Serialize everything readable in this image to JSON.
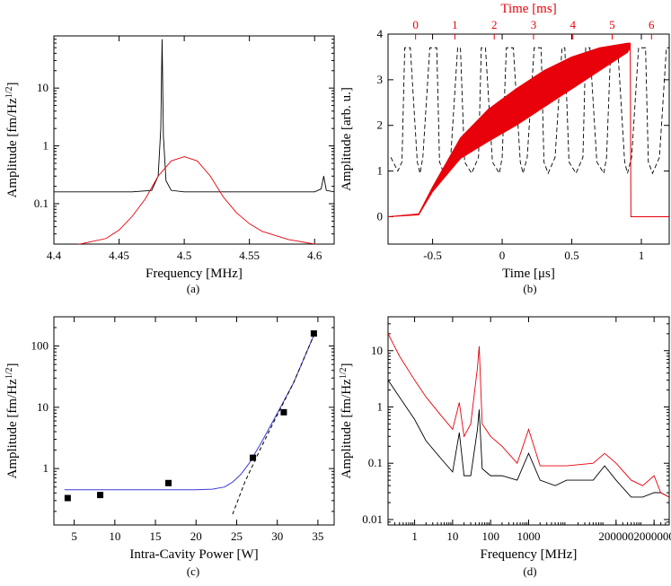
{
  "colors": {
    "primary": "#000000",
    "secondary": "#e8000b",
    "fit": "#3b3bd6"
  },
  "chart_data": [
    {
      "id": "a",
      "type": "line",
      "caption": "(a)",
      "xlabel": "Frequency [MHz]",
      "ylabel": "Amplitude [fm/Hz",
      "ylabel_sup": "1/2",
      "ylabel_end": "]",
      "xlim": [
        4.4,
        4.615
      ],
      "ylim": [
        0.02,
        80
      ],
      "yscale": "log",
      "xticks": [
        4.4,
        4.45,
        4.5,
        4.55,
        4.6
      ],
      "xtick_labels": [
        "4.4",
        "4.45",
        "4.5",
        "4.55",
        "4.6"
      ],
      "yticks": [
        0.1,
        1,
        10
      ],
      "ytick_labels": [
        "0.1",
        "1",
        "10"
      ],
      "series": [
        {
          "color": "#000000",
          "x": [
            4.4,
            4.42,
            4.44,
            4.46,
            4.475,
            4.48,
            4.482,
            4.483,
            4.484,
            4.486,
            4.49,
            4.5,
            4.52,
            4.54,
            4.56,
            4.58,
            4.6,
            4.605,
            4.607,
            4.609,
            4.615
          ],
          "y": [
            0.16,
            0.16,
            0.16,
            0.16,
            0.17,
            0.3,
            2,
            70,
            1.5,
            0.25,
            0.17,
            0.16,
            0.16,
            0.16,
            0.16,
            0.16,
            0.16,
            0.18,
            0.3,
            0.17,
            0.16
          ]
        },
        {
          "color": "#e8000b",
          "x": [
            4.4,
            4.42,
            4.44,
            4.45,
            4.46,
            4.47,
            4.48,
            4.49,
            4.5,
            4.51,
            4.52,
            4.53,
            4.54,
            4.55,
            4.56,
            4.58,
            4.6,
            4.615
          ],
          "y": [
            0.018,
            0.02,
            0.025,
            0.035,
            0.06,
            0.12,
            0.3,
            0.55,
            0.65,
            0.55,
            0.3,
            0.13,
            0.07,
            0.045,
            0.033,
            0.024,
            0.02,
            0.018
          ]
        }
      ]
    },
    {
      "id": "b",
      "type": "line",
      "caption": "(b)",
      "xlabel": "Time [μs]",
      "ylabel": "Amplitude [arb. u.]",
      "top_xlabel": "Time [ms]",
      "xlim": [
        -0.82,
        1.2
      ],
      "ylim": [
        -0.6,
        4
      ],
      "xticks": [
        -0.5,
        0,
        0.5,
        1
      ],
      "xtick_labels": [
        "-0.5",
        "0",
        "0.5",
        "1"
      ],
      "yticks": [
        0,
        1,
        2,
        3,
        4
      ],
      "ytick_labels": [
        "0",
        "1",
        "2",
        "3",
        "4"
      ],
      "top_xticks": [
        0,
        1,
        2,
        3,
        4,
        5,
        6
      ],
      "top_xtick_labels": [
        "0",
        "1",
        "2",
        "3",
        "4",
        "5",
        "6"
      ],
      "top_xlim": [
        -0.7,
        6.45
      ],
      "series": [
        {
          "color": "#000000",
          "style": "dashed",
          "x": [
            -0.8,
            -0.75,
            -0.72,
            -0.7,
            -0.66,
            -0.61,
            -0.59,
            -0.57,
            -0.52,
            -0.47,
            -0.45,
            -0.42,
            -0.37,
            -0.32,
            -0.3,
            -0.27,
            -0.22,
            -0.17,
            -0.15,
            -0.12,
            -0.07,
            -0.02,
            0,
            0.03,
            0.08,
            0.13,
            0.15,
            0.18,
            0.23,
            0.28,
            0.3,
            0.33,
            0.38,
            0.43,
            0.45,
            0.48,
            0.53,
            0.58,
            0.6,
            0.63,
            0.68,
            0.73,
            0.75,
            0.78,
            0.83,
            0.88,
            0.9,
            0.93,
            0.98,
            1.03,
            1.05,
            1.08,
            1.13,
            1.18,
            1.2
          ],
          "y": [
            1.3,
            1.0,
            1.2,
            3.7,
            3.7,
            1.2,
            0.95,
            1.3,
            3.7,
            3.7,
            1.2,
            0.95,
            1.3,
            3.7,
            3.7,
            1.2,
            0.95,
            1.3,
            3.7,
            3.7,
            1.2,
            0.95,
            1.3,
            3.7,
            3.7,
            1.2,
            0.95,
            1.3,
            3.7,
            3.7,
            1.2,
            0.95,
            1.3,
            3.7,
            3.7,
            1.2,
            0.95,
            1.3,
            3.7,
            3.7,
            1.2,
            0.95,
            1.3,
            3.7,
            3.7,
            1.2,
            0.95,
            1.3,
            3.7,
            3.7,
            1.2,
            0.95,
            1.3,
            3.7,
            3.7
          ]
        },
        {
          "color": "#e8000b",
          "style": "band",
          "x": [
            -0.82,
            -0.6,
            -0.5,
            -0.3,
            -0.1,
            0.1,
            0.3,
            0.5,
            0.7,
            0.9,
            0.92,
            0.925,
            1.2
          ],
          "y": [
            0,
            0.05,
            0.6,
            1.5,
            2.0,
            2.4,
            2.8,
            3.15,
            3.45,
            3.7,
            3.75,
            0,
            0
          ],
          "band": [
            0,
            0.02,
            0.1,
            0.45,
            0.7,
            0.8,
            0.8,
            0.7,
            0.5,
            0.2,
            0.1,
            0,
            0
          ]
        }
      ]
    },
    {
      "id": "c",
      "type": "scatter",
      "caption": "(c)",
      "xlabel": "Intra-Cavity Power [W]",
      "ylabel": "Amplitude [fm/Hz",
      "ylabel_sup": "1/2",
      "ylabel_end": "]",
      "xlim": [
        2.5,
        37
      ],
      "ylim": [
        0.12,
        300
      ],
      "yscale": "log",
      "xticks": [
        5,
        10,
        15,
        20,
        25,
        30,
        35
      ],
      "xtick_labels": [
        "5",
        "10",
        "15",
        "20",
        "25",
        "30",
        "35"
      ],
      "yticks": [
        1,
        10,
        100
      ],
      "ytick_labels": [
        "1",
        "10",
        "100"
      ],
      "points": {
        "x": [
          4.2,
          8.2,
          16.6,
          27.0,
          30.8,
          34.5
        ],
        "y": [
          0.33,
          0.37,
          0.58,
          1.5,
          8.3,
          160
        ]
      },
      "fit_solid": {
        "x": [
          3.8,
          20,
          22,
          23.5,
          24.5,
          25.5,
          26.5,
          28,
          30,
          32,
          34.5
        ],
        "y": [
          0.45,
          0.45,
          0.46,
          0.5,
          0.6,
          0.8,
          1.2,
          2.6,
          8.0,
          25,
          150
        ]
      },
      "fit_dashed": {
        "x": [
          24.5,
          26,
          28,
          30,
          32,
          34.5
        ],
        "y": [
          0.18,
          0.6,
          2.2,
          7.5,
          25,
          150
        ]
      }
    },
    {
      "id": "d",
      "type": "line",
      "caption": "(d)",
      "xlabel": "Frequency [MHz]",
      "ylabel": "Amplitude [fm/Hz",
      "ylabel_sup": "1/2",
      "ylabel_end": "]",
      "xscale": "log",
      "yscale": "log",
      "xlim": [
        0.2,
        5000000
      ],
      "ylim": [
        0.008,
        40
      ],
      "xticks": [
        1,
        10,
        100,
        1000,
        200000,
        2000000
      ],
      "xtick_labels": [
        "1",
        "10",
        "100",
        "1000",
        "200000",
        "2000000"
      ],
      "yticks": [
        0.01,
        0.1,
        1,
        10
      ],
      "ytick_labels": [
        "0.01",
        "0.1",
        "1",
        "10"
      ],
      "series": [
        {
          "color": "#000000",
          "x": [
            0.2,
            0.4,
            1,
            2,
            5,
            10,
            15,
            20,
            30,
            45,
            50,
            60,
            100,
            200,
            500,
            1000,
            2000,
            5000,
            10000,
            50000,
            100000,
            200000,
            500000,
            1000000,
            2000000,
            3000000,
            5000000
          ],
          "y": [
            3,
            1.5,
            0.6,
            0.25,
            0.12,
            0.07,
            0.35,
            0.06,
            0.06,
            0.4,
            0.9,
            0.08,
            0.06,
            0.06,
            0.05,
            0.15,
            0.05,
            0.04,
            0.05,
            0.05,
            0.09,
            0.05,
            0.025,
            0.025,
            0.03,
            0.03,
            0.025
          ]
        },
        {
          "color": "#e8000b",
          "x": [
            0.2,
            0.4,
            1,
            2,
            5,
            10,
            15,
            20,
            30,
            45,
            50,
            60,
            100,
            200,
            500,
            1000,
            2000,
            5000,
            10000,
            50000,
            100000,
            200000,
            500000,
            1000000,
            2000000,
            3000000,
            5000000
          ],
          "y": [
            20,
            8,
            3,
            1.5,
            0.7,
            0.4,
            1.2,
            0.3,
            0.5,
            5,
            12,
            0.5,
            0.3,
            0.2,
            0.1,
            0.4,
            0.09,
            0.09,
            0.09,
            0.1,
            0.15,
            0.1,
            0.05,
            0.04,
            0.06,
            0.03,
            0.025
          ]
        }
      ]
    }
  ]
}
